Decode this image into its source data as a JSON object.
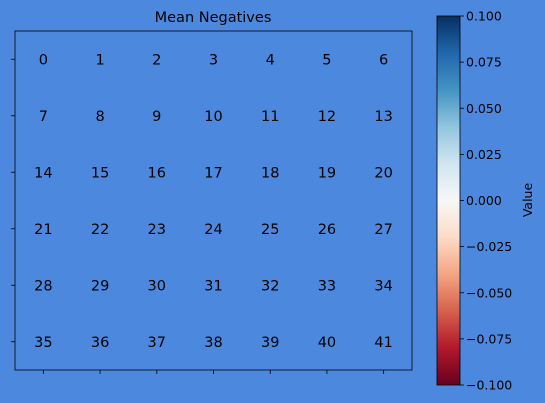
{
  "chart_data": {
    "type": "heatmap",
    "title": "Mean Negatives",
    "rows": 6,
    "cols": 7,
    "values": [
      [
        0,
        0,
        0,
        0,
        0,
        0,
        0
      ],
      [
        0,
        0,
        0,
        0,
        0,
        0,
        0
      ],
      [
        0,
        0,
        0,
        0,
        0,
        0,
        0
      ],
      [
        0,
        0,
        0,
        0,
        0,
        0,
        0
      ],
      [
        0,
        0,
        0,
        0,
        0,
        0,
        0
      ],
      [
        0,
        0,
        0,
        0,
        0,
        0,
        0
      ]
    ],
    "cell_labels": [
      [
        "0",
        "1",
        "2",
        "3",
        "4",
        "5",
        "6"
      ],
      [
        "7",
        "8",
        "9",
        "10",
        "11",
        "12",
        "13"
      ],
      [
        "14",
        "15",
        "16",
        "17",
        "18",
        "19",
        "20"
      ],
      [
        "21",
        "22",
        "23",
        "24",
        "25",
        "26",
        "27"
      ],
      [
        "28",
        "29",
        "30",
        "31",
        "32",
        "33",
        "34"
      ],
      [
        "35",
        "36",
        "37",
        "38",
        "39",
        "40",
        "41"
      ]
    ],
    "x_tick_labels": [],
    "y_tick_labels": [],
    "colormap": "RdBu",
    "vmin": -0.1,
    "vmax": 0.1,
    "colorbar": {
      "label": "Value",
      "ticks": [
        0.1,
        0.075,
        0.05,
        0.025,
        0.0,
        -0.025,
        -0.05,
        -0.075,
        -0.1
      ],
      "tick_labels": [
        "0.100",
        "0.075",
        "0.050",
        "0.025",
        "0.000",
        "−0.025",
        "−0.050",
        "−0.075",
        "−0.100"
      ]
    }
  },
  "colors": {
    "background": "#4d88df",
    "text": "#000000"
  }
}
